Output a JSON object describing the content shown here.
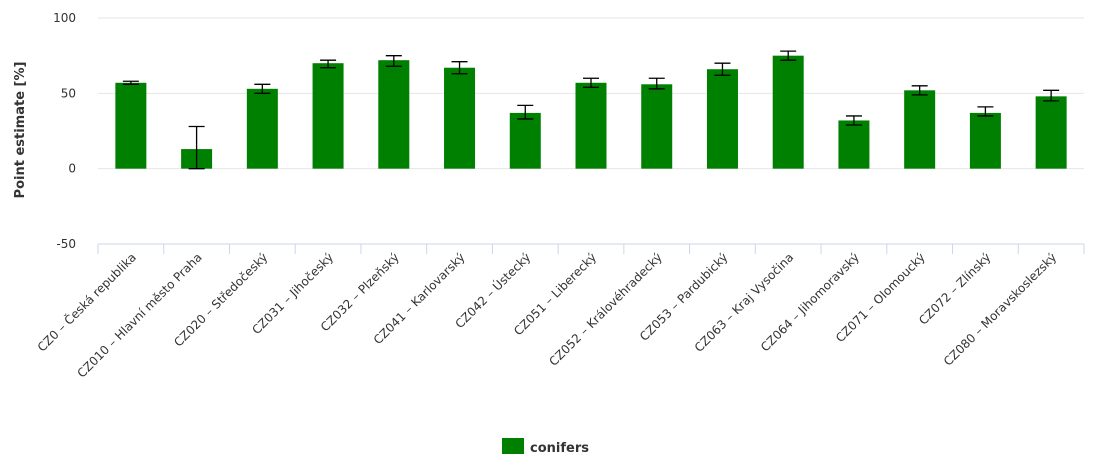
{
  "chart_data": {
    "type": "bar",
    "title": "",
    "xlabel": "",
    "ylabel": "Point estimate [%]",
    "ylim": [
      -50,
      100
    ],
    "yticks": [
      -50,
      0,
      50,
      100
    ],
    "grid": true,
    "legend_position": "bottom-center",
    "categories": [
      "CZ0 – Česká republika",
      "CZ010 – Hlavní město Praha",
      "CZ020 – Středočeský",
      "CZ031 – Jihočeský",
      "CZ032 – Plzeňský",
      "CZ041 – Karlovarský",
      "CZ042 – Ústecký",
      "CZ051 – Liberecký",
      "CZ052 – Královéhradecký",
      "CZ053 – Pardubický",
      "CZ063 – Kraj Vysočina",
      "CZ064 – Jihomoravský",
      "CZ071 – Olomoucký",
      "CZ072 – Zlínský",
      "CZ080 – Moravskoslezský"
    ],
    "series": [
      {
        "name": "conifers",
        "color": "#008000",
        "values": [
          57,
          13,
          53,
          70,
          72,
          67,
          37,
          57,
          56,
          66,
          75,
          32,
          52,
          37,
          48
        ],
        "error_low": [
          56,
          0,
          50,
          67,
          68,
          63,
          33,
          54,
          53,
          62,
          72,
          29,
          49,
          35,
          45
        ],
        "error_high": [
          58,
          28,
          56,
          72,
          75,
          71,
          42,
          60,
          60,
          70,
          78,
          35,
          55,
          41,
          52
        ]
      }
    ]
  }
}
